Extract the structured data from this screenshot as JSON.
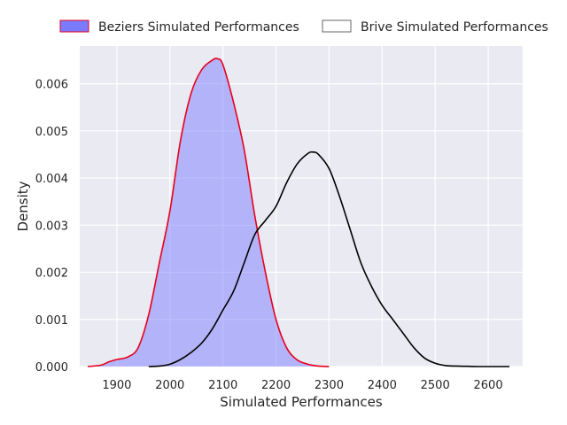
{
  "chart_data": {
    "type": "area",
    "title": "",
    "xlabel": "Simulated Performances",
    "ylabel": "Density",
    "xlim": [
      1830,
      2665
    ],
    "ylim": [
      0,
      0.0068
    ],
    "xticks": [
      1900,
      2000,
      2100,
      2200,
      2300,
      2400,
      2500,
      2600
    ],
    "xtick_labels": [
      "1900",
      "2000",
      "2100",
      "2200",
      "2300",
      "2400",
      "2500",
      "2600"
    ],
    "yticks": [
      0,
      0.001,
      0.002,
      0.003,
      0.004,
      0.005,
      0.006
    ],
    "ytick_labels": [
      "0.000",
      "0.001",
      "0.002",
      "0.003",
      "0.004",
      "0.005",
      "0.006"
    ],
    "grid": true,
    "legend_position": "top, outside plot, horizontal",
    "background_color": "#eaeaf2",
    "series": [
      {
        "name": "Beziers Simulated Performances",
        "fill_color": "#7b7bff",
        "line_color": "#e8001c",
        "filled": true,
        "x": [
          1845,
          1870,
          1885,
          1900,
          1920,
          1940,
          1960,
          1980,
          2000,
          2020,
          2040,
          2060,
          2080,
          2090,
          2100,
          2120,
          2140,
          2160,
          2180,
          2200,
          2220,
          2240,
          2260,
          2280,
          2300
        ],
        "y": [
          0.0,
          3e-05,
          0.0001,
          0.00015,
          0.0002,
          0.0004,
          0.0011,
          0.0022,
          0.0033,
          0.0048,
          0.0058,
          0.0063,
          0.0065,
          0.00653,
          0.0064,
          0.0056,
          0.0046,
          0.0032,
          0.002,
          0.001,
          0.0004,
          0.00014,
          5e-05,
          1e-05,
          0.0
        ]
      },
      {
        "name": "Brive Simulated Performances",
        "fill_color": "none",
        "line_color": "#000000",
        "filled": false,
        "x": [
          1960,
          1980,
          2000,
          2020,
          2040,
          2060,
          2080,
          2100,
          2120,
          2140,
          2160,
          2180,
          2200,
          2220,
          2240,
          2260,
          2270,
          2280,
          2300,
          2320,
          2340,
          2360,
          2380,
          2400,
          2420,
          2440,
          2460,
          2480,
          2500,
          2520,
          2540,
          2560,
          2580,
          2600,
          2640
        ],
        "y": [
          0.0,
          1e-05,
          5e-05,
          0.00015,
          0.0003,
          0.0005,
          0.0008,
          0.0012,
          0.0016,
          0.0022,
          0.0028,
          0.0031,
          0.0034,
          0.0039,
          0.0043,
          0.00452,
          0.00455,
          0.0045,
          0.0042,
          0.0036,
          0.0029,
          0.0022,
          0.0017,
          0.0013,
          0.001,
          0.0007,
          0.0004,
          0.00018,
          7e-05,
          2e-05,
          1e-05,
          5e-06,
          0.0,
          0.0,
          0.0
        ]
      }
    ]
  }
}
